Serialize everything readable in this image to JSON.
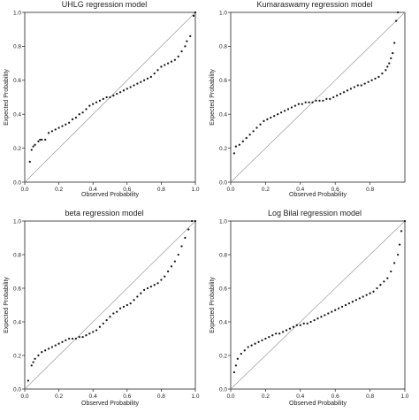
{
  "chart_data": [
    {
      "type": "scatter",
      "title": "UHLG regression model",
      "xlabel": "Observed Probability",
      "ylabel": "Expected Probability",
      "xlim": [
        0,
        1
      ],
      "ylim": [
        0,
        1
      ],
      "xticks": [
        "0.0",
        "0.2",
        "0.4",
        "0.6",
        "0.8",
        "1.0"
      ],
      "yticks": [
        "0.0",
        "0.2",
        "0.4",
        "0.6",
        "0.8",
        "1.0"
      ],
      "reference_line": "diagonal y = x",
      "grid": false,
      "x": [
        0.03,
        0.04,
        0.05,
        0.06,
        0.08,
        0.09,
        0.1,
        0.12,
        0.14,
        0.16,
        0.18,
        0.2,
        0.22,
        0.24,
        0.26,
        0.28,
        0.3,
        0.32,
        0.34,
        0.36,
        0.38,
        0.4,
        0.42,
        0.44,
        0.46,
        0.48,
        0.5,
        0.52,
        0.54,
        0.56,
        0.58,
        0.6,
        0.62,
        0.64,
        0.66,
        0.68,
        0.7,
        0.72,
        0.74,
        0.76,
        0.78,
        0.8,
        0.82,
        0.84,
        0.86,
        0.88,
        0.9,
        0.92,
        0.94,
        0.95,
        0.97,
        0.99,
        1.0
      ],
      "y": [
        0.12,
        0.19,
        0.21,
        0.22,
        0.24,
        0.25,
        0.25,
        0.25,
        0.29,
        0.3,
        0.31,
        0.32,
        0.33,
        0.34,
        0.35,
        0.37,
        0.38,
        0.4,
        0.41,
        0.43,
        0.45,
        0.46,
        0.47,
        0.48,
        0.49,
        0.5,
        0.5,
        0.51,
        0.52,
        0.53,
        0.54,
        0.55,
        0.56,
        0.57,
        0.58,
        0.59,
        0.6,
        0.61,
        0.62,
        0.64,
        0.66,
        0.68,
        0.69,
        0.7,
        0.71,
        0.72,
        0.74,
        0.77,
        0.8,
        0.83,
        0.86,
        0.98,
        1.0
      ]
    },
    {
      "type": "scatter",
      "title": "Kumaraswamy regression model",
      "xlabel": "Observed Probability",
      "ylabel": "Expected Probability",
      "xlim": [
        0,
        1
      ],
      "ylim": [
        0,
        1
      ],
      "xticks": [
        "0.0",
        "0.2",
        "0.4",
        "0.6",
        "0.8"
      ],
      "yticks": [
        "0.0",
        "0.2",
        "0.4",
        "0.6",
        "0.8",
        "1.0"
      ],
      "reference_line": "diagonal y = x",
      "grid": false,
      "x": [
        0.02,
        0.03,
        0.05,
        0.07,
        0.09,
        0.11,
        0.13,
        0.15,
        0.17,
        0.19,
        0.21,
        0.23,
        0.25,
        0.27,
        0.29,
        0.31,
        0.33,
        0.35,
        0.37,
        0.39,
        0.41,
        0.43,
        0.45,
        0.47,
        0.49,
        0.51,
        0.53,
        0.55,
        0.57,
        0.59,
        0.61,
        0.63,
        0.65,
        0.67,
        0.69,
        0.71,
        0.73,
        0.75,
        0.77,
        0.79,
        0.81,
        0.83,
        0.85,
        0.87,
        0.89,
        0.9,
        0.91,
        0.92,
        0.93,
        0.94,
        0.95,
        0.96
      ],
      "y": [
        0.17,
        0.21,
        0.22,
        0.24,
        0.26,
        0.28,
        0.3,
        0.32,
        0.34,
        0.36,
        0.37,
        0.38,
        0.39,
        0.4,
        0.41,
        0.42,
        0.43,
        0.44,
        0.45,
        0.46,
        0.46,
        0.47,
        0.47,
        0.47,
        0.48,
        0.48,
        0.48,
        0.49,
        0.49,
        0.5,
        0.51,
        0.52,
        0.53,
        0.54,
        0.55,
        0.56,
        0.57,
        0.57,
        0.58,
        0.59,
        0.6,
        0.61,
        0.62,
        0.64,
        0.66,
        0.68,
        0.7,
        0.73,
        0.76,
        0.82,
        0.95,
        1.0
      ]
    },
    {
      "type": "scatter",
      "title": "beta regression model",
      "xlabel": "Observed Probability",
      "ylabel": "Expected Probability",
      "xlim": [
        0,
        1
      ],
      "ylim": [
        0,
        1
      ],
      "xticks": [
        "0.0",
        "0.2",
        "0.4",
        "0.6",
        "0.8",
        "1.0"
      ],
      "yticks": [
        "0.0",
        "0.2",
        "0.4",
        "0.6",
        "0.8",
        "1.0"
      ],
      "reference_line": "diagonal y = x",
      "grid": false,
      "x": [
        0.02,
        0.04,
        0.05,
        0.06,
        0.08,
        0.1,
        0.12,
        0.14,
        0.16,
        0.18,
        0.2,
        0.22,
        0.24,
        0.26,
        0.28,
        0.3,
        0.32,
        0.34,
        0.36,
        0.38,
        0.4,
        0.42,
        0.44,
        0.46,
        0.48,
        0.5,
        0.52,
        0.54,
        0.56,
        0.58,
        0.6,
        0.62,
        0.64,
        0.66,
        0.68,
        0.7,
        0.72,
        0.74,
        0.76,
        0.78,
        0.8,
        0.82,
        0.84,
        0.86,
        0.88,
        0.9,
        0.92,
        0.94,
        0.96,
        0.98,
        1.0
      ],
      "y": [
        0.05,
        0.14,
        0.16,
        0.18,
        0.2,
        0.22,
        0.23,
        0.24,
        0.25,
        0.26,
        0.27,
        0.28,
        0.29,
        0.3,
        0.3,
        0.3,
        0.31,
        0.31,
        0.32,
        0.33,
        0.34,
        0.35,
        0.37,
        0.39,
        0.41,
        0.43,
        0.45,
        0.46,
        0.48,
        0.49,
        0.5,
        0.51,
        0.53,
        0.55,
        0.57,
        0.59,
        0.6,
        0.61,
        0.62,
        0.63,
        0.65,
        0.67,
        0.7,
        0.73,
        0.76,
        0.8,
        0.85,
        0.9,
        0.95,
        1.0,
        1.0
      ]
    },
    {
      "type": "scatter",
      "title": "Log Bilal regression model",
      "xlabel": "Observed Probability",
      "ylabel": "Expected Probability",
      "xlim": [
        0,
        1
      ],
      "ylim": [
        0,
        1
      ],
      "xticks": [
        "0.0",
        "0.2",
        "0.4",
        "0.6",
        "0.8",
        "1.0"
      ],
      "yticks": [
        "0.0",
        "0.2",
        "0.4",
        "0.6",
        "0.8",
        "1.0"
      ],
      "reference_line": "diagonal y = x",
      "grid": false,
      "x": [
        0.02,
        0.03,
        0.04,
        0.06,
        0.08,
        0.1,
        0.12,
        0.14,
        0.16,
        0.18,
        0.2,
        0.22,
        0.24,
        0.26,
        0.28,
        0.3,
        0.32,
        0.34,
        0.36,
        0.38,
        0.4,
        0.42,
        0.44,
        0.46,
        0.48,
        0.5,
        0.52,
        0.54,
        0.56,
        0.58,
        0.6,
        0.62,
        0.64,
        0.66,
        0.68,
        0.7,
        0.72,
        0.74,
        0.76,
        0.78,
        0.8,
        0.82,
        0.84,
        0.86,
        0.88,
        0.9,
        0.92,
        0.94,
        0.96,
        0.97,
        0.98,
        1.0
      ],
      "y": [
        0.1,
        0.14,
        0.18,
        0.21,
        0.23,
        0.25,
        0.26,
        0.27,
        0.28,
        0.29,
        0.3,
        0.31,
        0.32,
        0.33,
        0.33,
        0.34,
        0.35,
        0.36,
        0.37,
        0.38,
        0.38,
        0.39,
        0.39,
        0.4,
        0.41,
        0.42,
        0.43,
        0.44,
        0.45,
        0.46,
        0.47,
        0.48,
        0.49,
        0.5,
        0.51,
        0.52,
        0.53,
        0.54,
        0.55,
        0.56,
        0.57,
        0.58,
        0.6,
        0.62,
        0.64,
        0.66,
        0.7,
        0.75,
        0.8,
        0.86,
        0.94,
        1.0
      ]
    }
  ]
}
